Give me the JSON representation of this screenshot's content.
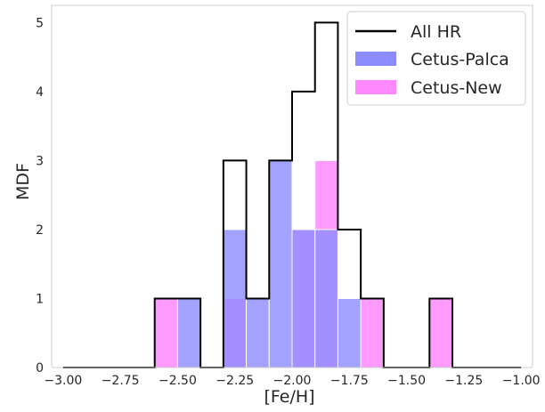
{
  "chart_data": {
    "type": "histogram",
    "xlabel": "[Fe/H]",
    "ylabel": "MDF",
    "xlim": [
      -3.05,
      -0.95
    ],
    "ylim": [
      0,
      5.25
    ],
    "xticks": [
      -3.0,
      -2.75,
      -2.5,
      -2.25,
      -2.0,
      -1.75,
      -1.5,
      -1.25,
      -1.0
    ],
    "xtick_labels": [
      "−3.00",
      "−2.75",
      "−2.50",
      "−2.25",
      "−2.00",
      "−1.75",
      "−1.50",
      "−1.25",
      "−1.00"
    ],
    "yticks": [
      0,
      1,
      2,
      3,
      4,
      5
    ],
    "ytick_labels": [
      "0",
      "1",
      "2",
      "3",
      "4",
      "5"
    ],
    "grid": false,
    "legend_position": "top-right",
    "bin_edges": [
      -3.0,
      -2.9,
      -2.8,
      -2.7,
      -2.6,
      -2.5,
      -2.4,
      -2.3,
      -2.2,
      -2.1,
      -2.0,
      -1.9,
      -1.8,
      -1.7,
      -1.6,
      -1.5,
      -1.4,
      -1.3,
      -1.2,
      -1.1,
      -1.0
    ],
    "series": [
      {
        "name": "All HR",
        "style": "step",
        "color": "#000000",
        "values": [
          0,
          0,
          0,
          0,
          1,
          1,
          0,
          3,
          1,
          3,
          4,
          5,
          2,
          1,
          0,
          0,
          1,
          0,
          0,
          0,
          0
        ]
      },
      {
        "name": "Cetus-Palca",
        "style": "filled",
        "color": "#8c8cff",
        "values": [
          0,
          0,
          0,
          0,
          0,
          1,
          0,
          2,
          1,
          3,
          2,
          2,
          1,
          0,
          0,
          0,
          0,
          0,
          0,
          0
        ]
      },
      {
        "name": "Cetus-New",
        "style": "filled",
        "color": "#ff88ff",
        "values": [
          0,
          0,
          0,
          0,
          1,
          0,
          0,
          1,
          0,
          0,
          2,
          3,
          0,
          1,
          0,
          0,
          1,
          0,
          0,
          0
        ]
      }
    ]
  }
}
